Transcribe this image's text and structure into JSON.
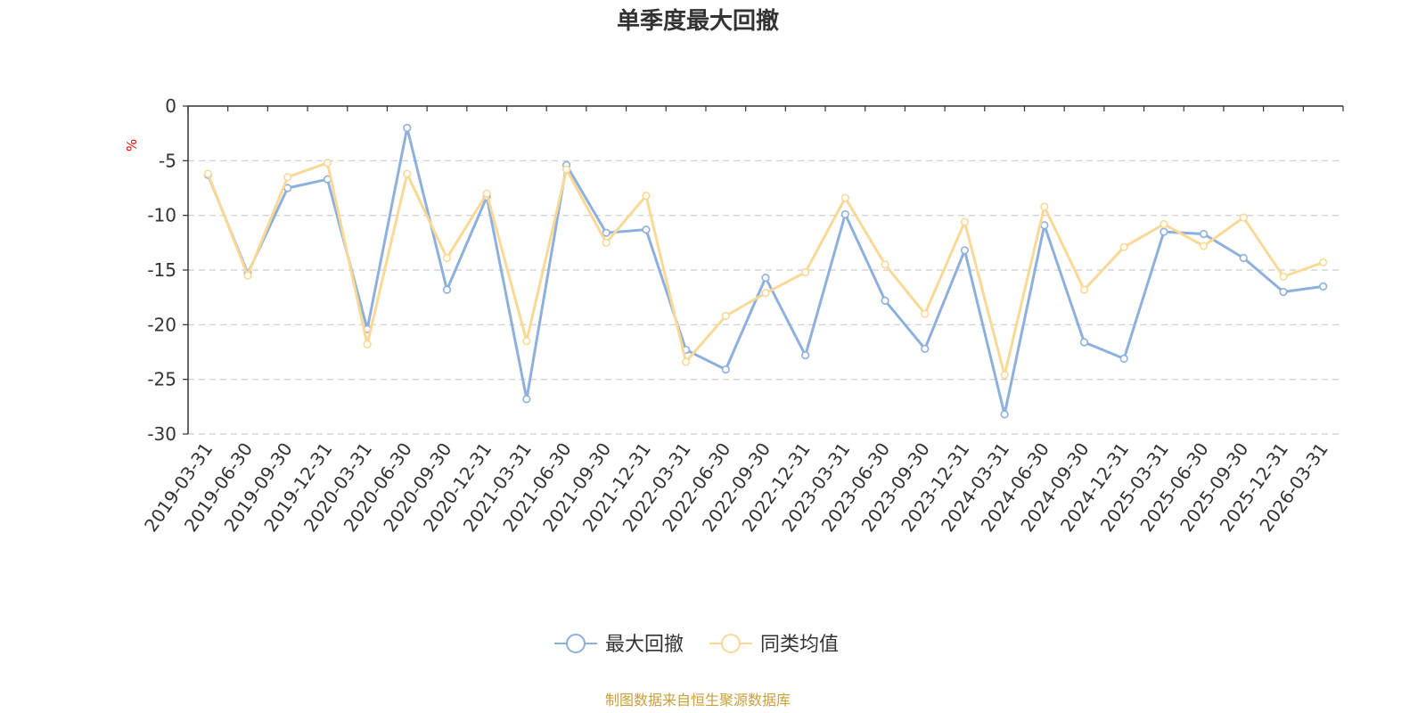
{
  "chart_data": {
    "type": "line",
    "title": "单季度最大回撤",
    "ylabel": "%",
    "ylim": [
      -30,
      0
    ],
    "yticks": [
      0,
      -5,
      -10,
      -15,
      -20,
      -25,
      -30
    ],
    "grid": true,
    "legend_placement": "bottom-center",
    "categories": [
      "2019-03-31",
      "2019-06-30",
      "2019-09-30",
      "2019-12-31",
      "2020-03-31",
      "2020-06-30",
      "2020-09-30",
      "2020-12-31",
      "2021-03-31",
      "2021-06-30",
      "2021-09-30",
      "2021-12-31",
      "2022-03-31",
      "2022-06-30",
      "2022-09-30",
      "2022-12-31",
      "2023-03-31",
      "2023-06-30",
      "2023-09-30",
      "2023-12-31",
      "2024-03-31",
      "2024-06-30",
      "2024-09-30",
      "2024-12-31",
      "2025-03-31",
      "2025-06-30",
      "2025-09-30",
      "2025-12-31",
      "2026-03-31"
    ],
    "series": [
      {
        "name": "最大回撤",
        "color": "#8eb0dc",
        "values": [
          -6.3,
          -15.3,
          -7.5,
          -6.7,
          -20.4,
          -2.0,
          -16.8,
          -8.3,
          -26.8,
          -5.4,
          -11.6,
          -11.3,
          -22.3,
          -24.1,
          -15.7,
          -22.8,
          -9.9,
          -17.8,
          -22.2,
          -13.2,
          -28.2,
          -10.9,
          -21.6,
          -23.1,
          -11.5,
          -11.7,
          -13.9,
          -17.0,
          -16.5
        ]
      },
      {
        "name": "同类均值",
        "color": "#fad997",
        "values": [
          -6.2,
          -15.5,
          -6.5,
          -5.2,
          -21.8,
          -6.2,
          -13.9,
          -8.0,
          -21.5,
          -5.8,
          -12.5,
          -8.2,
          -23.4,
          -19.2,
          -17.1,
          -15.2,
          -8.4,
          -14.5,
          -19.0,
          -10.6,
          -24.6,
          -9.2,
          -16.8,
          -12.9,
          -10.8,
          -12.8,
          -10.2,
          -15.6,
          -14.3
        ]
      }
    ],
    "source_note": "制图数据来自恒生聚源数据库",
    "colors": {
      "axis": "#333333",
      "grid": "#cccccc",
      "ylabel": "#ff0000",
      "source_note": "#c8a03c"
    }
  }
}
